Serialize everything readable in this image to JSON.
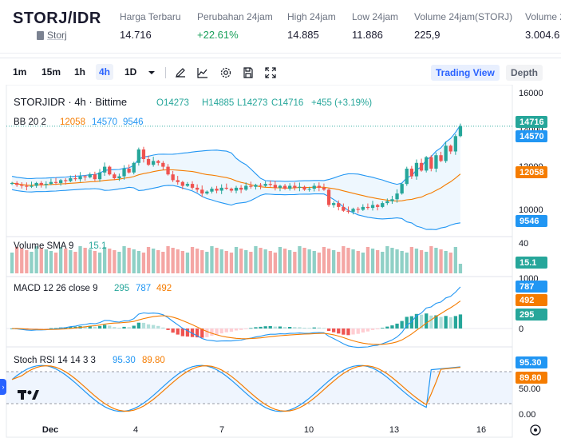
{
  "header": {
    "pair": "STORJ/IDR",
    "coin_link": "Storj",
    "stats": [
      {
        "label": "Harga Terbaru",
        "value": "14.716",
        "color": "#1a1a2e"
      },
      {
        "label": "Perubahan 24jam",
        "value": "+22.61%",
        "color": "#18a05a"
      },
      {
        "label": "High 24jam",
        "value": "14.885",
        "color": "#1a1a2e"
      },
      {
        "label": "Low 24jam",
        "value": "11.886",
        "color": "#1a1a2e"
      },
      {
        "label": "Volume 24jam(STORJ)",
        "value": "225,9",
        "color": "#1a1a2e"
      },
      {
        "label": "Volume 2",
        "value": "3.004.6",
        "color": "#1a1a2e"
      }
    ]
  },
  "toolbar": {
    "intervals": [
      "1m",
      "15m",
      "1h",
      "4h",
      "1D"
    ],
    "active_interval": "4h",
    "icons": [
      "chevron-down-icon",
      "pen-icon",
      "indicators-icon",
      "settings-icon",
      "save-icon",
      "fullscreen-icon"
    ],
    "tab_tradingview": "Trading View",
    "tab_depth": "Depth"
  },
  "chart_data": {
    "type": "candlestick",
    "title": "STORJIDR · 4h · Bittime",
    "ohlc_label": {
      "o": "O14273",
      "h": "H14885",
      "l": "L14273",
      "c": "C14716",
      "change": "+455 (+3.19%)"
    },
    "bb_label": {
      "name": "BB 20 2",
      "basis": "12058",
      "upper": "14570",
      "lower": "9546"
    },
    "price_axis": [
      "16000",
      "14000",
      "12000",
      "10000"
    ],
    "price_tags": [
      {
        "value": "14716",
        "color": "#26a69a"
      },
      {
        "value": "14570",
        "color": "#2196f3"
      },
      {
        "value": "12058",
        "color": "#f57c00"
      },
      {
        "value": "9546",
        "color": "#2196f3"
      }
    ],
    "volume": {
      "label": "Volume SMA 9",
      "value": "15.1",
      "axis": [
        "40"
      ],
      "tag": "15.1"
    },
    "macd": {
      "label": "MACD 12 26 close 9",
      "values": [
        "295",
        "787",
        "492"
      ],
      "axis": [
        "1000",
        "0"
      ],
      "tags": [
        {
          "value": "787",
          "color": "#2196f3"
        },
        {
          "value": "492",
          "color": "#f57c00"
        },
        {
          "value": "295",
          "color": "#26a69a"
        }
      ]
    },
    "stoch": {
      "label": "Stoch RSI 14 14 3 3",
      "values": [
        "95.30",
        "89.80"
      ],
      "axis": [
        "50.00",
        "0.00"
      ],
      "tags": [
        {
          "value": "95.30",
          "color": "#2196f3"
        },
        {
          "value": "89.80",
          "color": "#f57c00"
        }
      ]
    },
    "x_labels": [
      "Dec",
      "4",
      "7",
      "10",
      "13",
      "16"
    ],
    "closes": [
      11750,
      11650,
      11600,
      11550,
      11600,
      11750,
      11650,
      11700,
      11800,
      11750,
      11900,
      11850,
      12000,
      11950,
      12100,
      12050,
      12200,
      11950,
      12300,
      12600,
      12200,
      12000,
      12100,
      12500,
      12300,
      12800,
      13500,
      13000,
      12700,
      12900,
      12800,
      12600,
      12200,
      11900,
      11800,
      11600,
      11700,
      11500,
      11400,
      11200,
      11300,
      11450,
      11350,
      11500,
      11450,
      11350,
      11500,
      11400,
      11600,
      11550,
      11650,
      11600,
      11700,
      11650,
      11500,
      11600,
      11450,
      11600,
      11500,
      11550,
      11400,
      11450,
      11600,
      11500,
      11400,
      10600,
      10700,
      10500,
      10300,
      10250,
      10400,
      10350,
      10500,
      10450,
      10600,
      10500,
      10700,
      10800,
      10900,
      11200,
      11700,
      12500,
      12100,
      12800,
      12400,
      13100,
      12500,
      13200,
      12900,
      13700,
      13400,
      14200,
      14716
    ],
    "colors": {
      "up": "#26a69a",
      "down": "#ef5350",
      "bb": "#2196f3",
      "basis": "#f57c00",
      "band_fill": "#e3f2fd"
    }
  }
}
